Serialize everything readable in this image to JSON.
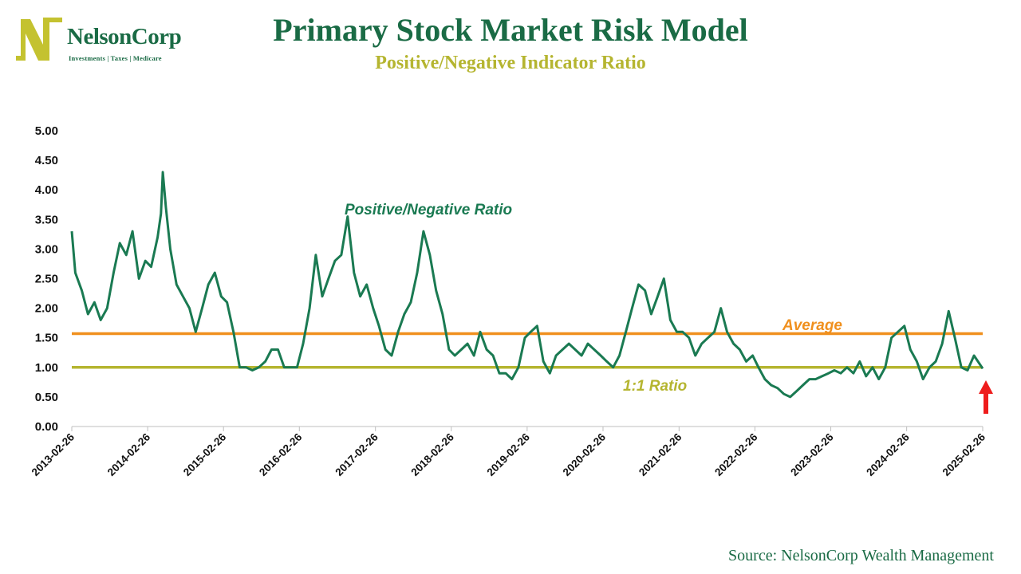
{
  "logo": {
    "name": "NelsonCorp",
    "tagline": "Investments | Taxes | Medicare",
    "colors": {
      "mark": "#c4c230",
      "text": "#1a6b45"
    }
  },
  "title": "Primary Stock Market Risk Model",
  "subtitle": "Positive/Negative Indicator Ratio",
  "source": "Source: NelsonCorp Wealth Management",
  "colors": {
    "series": "#1a7a52",
    "average": "#f0901e",
    "ratio": "#b5b530",
    "arrow": "#ee1c1c",
    "title": "#1a6b45"
  },
  "chart_data": {
    "type": "line",
    "title": "Primary Stock Market Risk Model",
    "subtitle": "Positive/Negative Indicator Ratio",
    "ylim": [
      0,
      5
    ],
    "yticks": [
      "0.00",
      "0.50",
      "1.00",
      "1.50",
      "2.00",
      "2.50",
      "3.00",
      "3.50",
      "4.00",
      "4.50",
      "5.00"
    ],
    "xlim": [
      "2013-02-26",
      "2025-02-26"
    ],
    "xticks": [
      "2013-02-26",
      "2014-02-26",
      "2015-02-26",
      "2016-02-26",
      "2017-02-26",
      "2018-02-26",
      "2019-02-26",
      "2020-02-26",
      "2021-02-26",
      "2022-02-26",
      "2023-02-26",
      "2024-02-26",
      "2025-02-26"
    ],
    "grid": false,
    "series": [
      {
        "name": "Positive/Negative Ratio",
        "x": [
          "2013-02-26",
          "2013-03-15",
          "2013-04-15",
          "2013-05-15",
          "2013-06-15",
          "2013-07-15",
          "2013-08-15",
          "2013-09-15",
          "2013-10-15",
          "2013-11-15",
          "2013-12-15",
          "2014-01-15",
          "2014-02-15",
          "2014-03-15",
          "2014-04-15",
          "2014-05-01",
          "2014-05-10",
          "2014-05-25",
          "2014-06-15",
          "2014-07-15",
          "2014-08-15",
          "2014-09-15",
          "2014-10-15",
          "2014-11-15",
          "2014-12-15",
          "2015-01-15",
          "2015-02-15",
          "2015-03-15",
          "2015-04-15",
          "2015-05-15",
          "2015-06-15",
          "2015-07-15",
          "2015-08-15",
          "2015-09-15",
          "2015-10-15",
          "2015-11-15",
          "2015-12-15",
          "2016-01-15",
          "2016-02-15",
          "2016-03-15",
          "2016-04-15",
          "2016-05-15",
          "2016-06-15",
          "2016-07-15",
          "2016-08-15",
          "2016-09-15",
          "2016-10-15",
          "2016-11-15",
          "2016-12-15",
          "2017-01-15",
          "2017-02-15",
          "2017-03-15",
          "2017-04-15",
          "2017-05-15",
          "2017-06-15",
          "2017-07-15",
          "2017-08-15",
          "2017-09-15",
          "2017-10-15",
          "2017-11-15",
          "2017-12-15",
          "2018-01-15",
          "2018-02-15",
          "2018-03-15",
          "2018-04-15",
          "2018-05-15",
          "2018-06-15",
          "2018-07-15",
          "2018-08-15",
          "2018-09-15",
          "2018-10-15",
          "2018-11-15",
          "2018-12-15",
          "2019-01-15",
          "2019-02-15",
          "2019-03-15",
          "2019-04-15",
          "2019-05-15",
          "2019-06-15",
          "2019-07-15",
          "2019-08-15",
          "2019-09-15",
          "2019-10-15",
          "2019-11-15",
          "2019-12-15",
          "2020-01-15",
          "2020-02-15",
          "2020-03-15",
          "2020-04-15",
          "2020-05-15",
          "2020-06-15",
          "2020-07-15",
          "2020-08-15",
          "2020-09-15",
          "2020-10-15",
          "2020-11-15",
          "2020-12-15",
          "2021-01-15",
          "2021-02-15",
          "2021-03-15",
          "2021-04-15",
          "2021-05-15",
          "2021-06-15",
          "2021-07-15",
          "2021-08-15",
          "2021-09-15",
          "2021-10-15",
          "2021-11-15",
          "2021-12-15",
          "2022-01-15",
          "2022-02-15",
          "2022-03-15",
          "2022-04-15",
          "2022-05-15",
          "2022-06-15",
          "2022-07-15",
          "2022-08-15",
          "2022-09-15",
          "2022-10-15",
          "2022-11-15",
          "2022-12-15",
          "2023-01-15",
          "2023-02-15",
          "2023-03-15",
          "2023-04-15",
          "2023-05-15",
          "2023-06-15",
          "2023-07-15",
          "2023-08-15",
          "2023-09-15",
          "2023-10-15",
          "2023-11-15",
          "2023-12-15",
          "2024-01-15",
          "2024-02-15",
          "2024-03-15",
          "2024-04-15",
          "2024-05-15",
          "2024-06-15",
          "2024-07-15",
          "2024-08-15",
          "2024-09-15",
          "2024-10-15",
          "2024-11-15",
          "2024-12-15",
          "2025-01-15",
          "2025-02-26"
        ],
        "values": [
          3.3,
          2.6,
          2.3,
          1.9,
          2.1,
          1.8,
          2.0,
          2.6,
          3.1,
          2.9,
          3.3,
          2.5,
          2.8,
          2.7,
          3.2,
          3.6,
          4.3,
          3.7,
          3.0,
          2.4,
          2.2,
          2.0,
          1.6,
          2.0,
          2.4,
          2.6,
          2.2,
          2.1,
          1.6,
          1.0,
          1.0,
          0.95,
          1.0,
          1.1,
          1.3,
          1.3,
          1.0,
          1.0,
          1.0,
          1.4,
          2.0,
          2.9,
          2.2,
          2.5,
          2.8,
          2.9,
          3.55,
          2.6,
          2.2,
          2.4,
          2.0,
          1.7,
          1.3,
          1.2,
          1.6,
          1.9,
          2.1,
          2.6,
          3.3,
          2.9,
          2.3,
          1.9,
          1.3,
          1.2,
          1.3,
          1.4,
          1.2,
          1.6,
          1.3,
          1.2,
          0.9,
          0.9,
          0.8,
          1.0,
          1.5,
          1.6,
          1.7,
          1.1,
          0.9,
          1.2,
          1.3,
          1.4,
          1.3,
          1.2,
          1.4,
          1.3,
          1.2,
          1.1,
          1.0,
          1.2,
          1.6,
          2.0,
          2.4,
          2.3,
          1.9,
          2.2,
          2.5,
          1.8,
          1.6,
          1.6,
          1.5,
          1.2,
          1.4,
          1.5,
          1.6,
          2.0,
          1.6,
          1.4,
          1.3,
          1.1,
          1.2,
          1.0,
          0.8,
          0.7,
          0.65,
          0.55,
          0.5,
          0.6,
          0.7,
          0.8,
          0.8,
          0.85,
          0.9,
          0.95,
          0.9,
          1.0,
          0.9,
          1.1,
          0.85,
          1.0,
          0.8,
          1.0,
          1.5,
          1.6,
          1.7,
          1.3,
          1.1,
          0.8,
          1.0,
          1.1,
          1.4,
          1.95,
          1.5,
          1.0,
          0.95,
          1.2,
          0.98
        ]
      }
    ],
    "reference_lines": [
      {
        "name": "Average",
        "value": 1.57
      },
      {
        "name": "1:1 Ratio",
        "value": 1.0
      }
    ],
    "annotations": [
      "Positive/Negative Ratio",
      "Average",
      "1:1 Ratio"
    ]
  }
}
